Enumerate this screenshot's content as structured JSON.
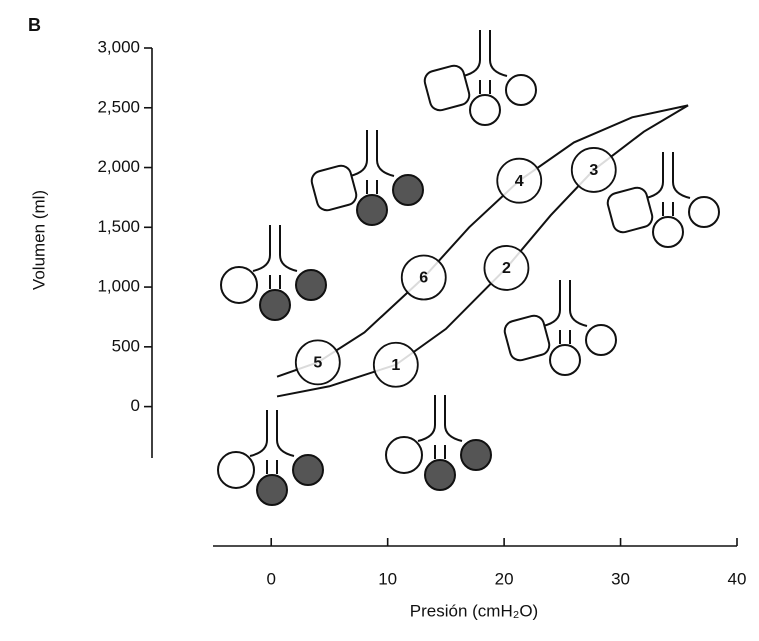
{
  "chart_data": {
    "type": "line",
    "panel": "B",
    "xlabel": "Presión (cmH₂O)",
    "ylabel": "Volumen (ml)",
    "xlim": [
      -5,
      40
    ],
    "xticks": [
      0,
      10,
      20,
      30,
      40
    ],
    "ylim": [
      -430,
      3000
    ],
    "yticks": [
      0,
      500,
      {
        "value": 1000,
        "label": "1,000"
      },
      {
        "value": 1500,
        "label": "1,500"
      },
      {
        "value": 2000,
        "label": "2,000"
      },
      {
        "value": 2500,
        "label": "2,500"
      },
      {
        "value": 3000,
        "label": "3,000"
      }
    ],
    "color": "#111",
    "series": [
      {
        "x": [
          0.5,
          5,
          10.7,
          15,
          20.2,
          24,
          27.7,
          32,
          35.8
        ],
        "values": [
          85,
          170,
          350,
          650,
          1160,
          1600,
          1980,
          2300,
          2520
        ]
      },
      {
        "x": [
          0.5,
          4,
          8,
          13.1,
          17,
          21.3,
          26,
          31,
          35.8
        ],
        "values": [
          250,
          370,
          620,
          1080,
          1500,
          1890,
          2210,
          2420,
          2520
        ]
      }
    ],
    "annotations": [
      {
        "label": "1",
        "x": 10.7,
        "y": 350
      },
      {
        "label": "2",
        "x": 20.2,
        "y": 1160
      },
      {
        "label": "3",
        "x": 27.7,
        "y": 1980
      },
      {
        "label": "4",
        "x": 21.3,
        "y": 1890
      },
      {
        "label": "5",
        "x": 4,
        "y": 370
      },
      {
        "label": "6",
        "x": 13.1,
        "y": 1080
      }
    ]
  }
}
